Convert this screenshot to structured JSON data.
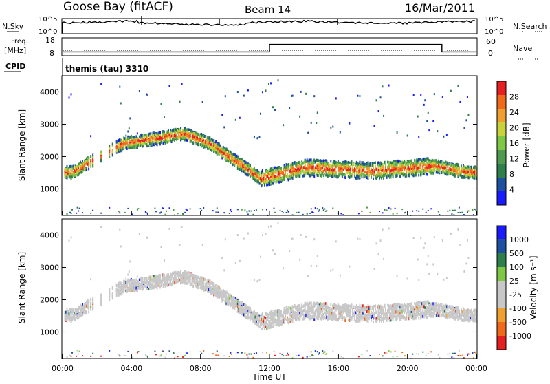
{
  "header": {
    "station": "Goose Bay (fitACF)",
    "beam": "Beam 14",
    "date": "16/Mar/2011"
  },
  "side_labels": {
    "nsky": "N.Sky",
    "nsearch": "N.Search",
    "freq": "Freq.",
    "freq_unit": "[MHz]",
    "nave": "Nave",
    "cpid": "CPID"
  },
  "cpid_text": "themis (tau) 3310",
  "colors": {
    "scale": [
      "#1a1aff",
      "#1e4fa0",
      "#2f7f4c",
      "#4f9a4f",
      "#7fc846",
      "#c8d23c",
      "#f0a030",
      "#f06a1e",
      "#e62020"
    ],
    "velocity": [
      "#e62020",
      "#f06a1e",
      "#f0a030",
      "#c8c8c8",
      "#c8c8c8",
      "#7fc846",
      "#2f7f4c",
      "#1e4fa0",
      "#1a1aff"
    ],
    "ground": "#c8c8c8"
  },
  "chart_data": [
    {
      "type": "line",
      "panel": "noise",
      "left_ticks": [
        "10^5",
        "10^0"
      ],
      "right_ticks": [
        "10^5",
        "10^0"
      ],
      "series": [
        {
          "name": "N.Sky",
          "style": "solid"
        },
        {
          "name": "N.Search",
          "style": "dotted"
        }
      ],
      "approx_level": "high, near 10^5 throughout"
    },
    {
      "type": "line",
      "panel": "freq_nave",
      "left_ticks": [
        "18",
        "8"
      ],
      "right_ticks": [
        "60",
        "0"
      ],
      "series": [
        {
          "name": "Freq.",
          "style": "solid",
          "x": [
            "00:00",
            "12:00",
            "12:00",
            "22:00",
            "22:00",
            "24:00"
          ],
          "y": [
            10,
            10,
            16,
            16,
            10,
            10
          ]
        },
        {
          "name": "Nave",
          "style": "dotted"
        }
      ]
    },
    {
      "type": "heatmap",
      "panel": "power",
      "title": "",
      "ylabel": "Slant Range [km]",
      "yticks": [
        "4000",
        "3000",
        "2000",
        "1000"
      ],
      "ylim": [
        180,
        4500
      ],
      "xlim": [
        "00:00",
        "24:00"
      ],
      "colorbar_label": "Power [dB]",
      "colorbar_ticks": [
        "28",
        "24",
        "20",
        "16",
        "12",
        "8",
        "4"
      ],
      "colorbar_range": [
        0,
        30
      ],
      "ionospheric_band_km": [
        {
          "t": 0.5,
          "range": 1550
        },
        {
          "t": 3.5,
          "range": 2450
        },
        {
          "t": 5.5,
          "range": 2600
        },
        {
          "t": 7.0,
          "range": 2750
        },
        {
          "t": 8.5,
          "range": 2450
        },
        {
          "t": 10.0,
          "range": 1900
        },
        {
          "t": 11.5,
          "range": 1350
        },
        {
          "t": 14.0,
          "range": 1700
        },
        {
          "t": 18.0,
          "range": 1600
        },
        {
          "t": 21.5,
          "range": 1750
        },
        {
          "t": 23.5,
          "range": 1550
        }
      ]
    },
    {
      "type": "heatmap",
      "panel": "velocity",
      "title": "",
      "ylabel": "Slant Range [km]",
      "yticks": [
        "4000",
        "3000",
        "2000",
        "1000"
      ],
      "ylim": [
        180,
        4500
      ],
      "xlim": [
        "00:00",
        "24:00"
      ],
      "colorbar_label": "Velocity [m s⁻¹]",
      "colorbar_ticks": [
        "1000",
        "500",
        "100",
        "25",
        "-25",
        "-100",
        "-500",
        "-1000"
      ],
      "colorbar_range": [
        -1000,
        1000
      ]
    }
  ],
  "x_axis": {
    "ticks": [
      "00:00",
      "04:00",
      "08:00",
      "12:00",
      "16:00",
      "20:00",
      "00:00"
    ],
    "label": "Time UT"
  }
}
